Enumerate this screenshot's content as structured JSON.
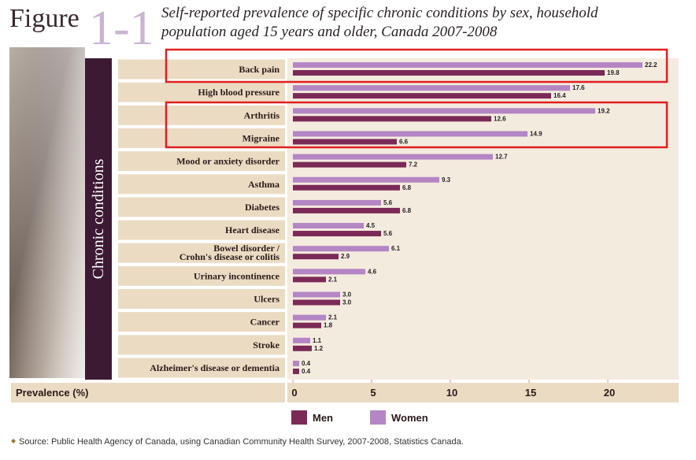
{
  "chart_data": {
    "type": "hbar",
    "figure_label": "Figure",
    "figure_number": "1-1",
    "title": "Self-reported prevalence of specific chronic conditions by sex, household\npopulation aged 15 years and older, Canada 2007-2008",
    "y_label": "Chronic conditions",
    "x_label": "Prevalence (%)",
    "categories": [
      "Back pain",
      "High blood pressure",
      "Arthritis",
      "Migraine",
      "Mood or anxiety disorder",
      "Asthma",
      "Diabetes",
      "Heart disease",
      "Bowel disorder /\nCrohn's disease or colitis",
      "Urinary incontinence",
      "Ulcers",
      "Cancer",
      "Stroke",
      "Alzheimer's disease or dementia"
    ],
    "series": [
      {
        "name": "Men",
        "color": "#7b2a58",
        "values": [
          19.8,
          16.4,
          12.6,
          6.6,
          7.2,
          6.8,
          6.8,
          5.6,
          2.9,
          2.1,
          3.0,
          1.8,
          1.2,
          0.4
        ],
        "value_labels": [
          "19.8",
          "16.4",
          "12.6",
          "6.6",
          "7.2",
          "6.8",
          "6.8",
          "5.6",
          "2.9",
          "2.1",
          "3.0",
          "1.8",
          "1.2",
          "0.4"
        ]
      },
      {
        "name": "Women",
        "color": "#b486c4",
        "values": [
          22.2,
          17.6,
          19.2,
          14.9,
          12.7,
          9.3,
          5.6,
          4.5,
          6.1,
          4.6,
          3.0,
          2.1,
          1.1,
          0.4
        ],
        "value_labels": [
          "22.2",
          "17.6",
          "19.2",
          "14.9",
          "12.7",
          "9.3",
          "5.6",
          "4.5",
          "6.1",
          "4.6",
          "3.0",
          "2.1",
          "1.1",
          "0.4"
        ]
      }
    ],
    "xlim": [
      0,
      24
    ],
    "xticks": [
      0,
      5,
      10,
      15,
      20
    ],
    "grid": false,
    "source": "Source: Public Health Agency of Canada, using Canadian Community Health Survey, 2007-2008, Statistics Canada."
  }
}
